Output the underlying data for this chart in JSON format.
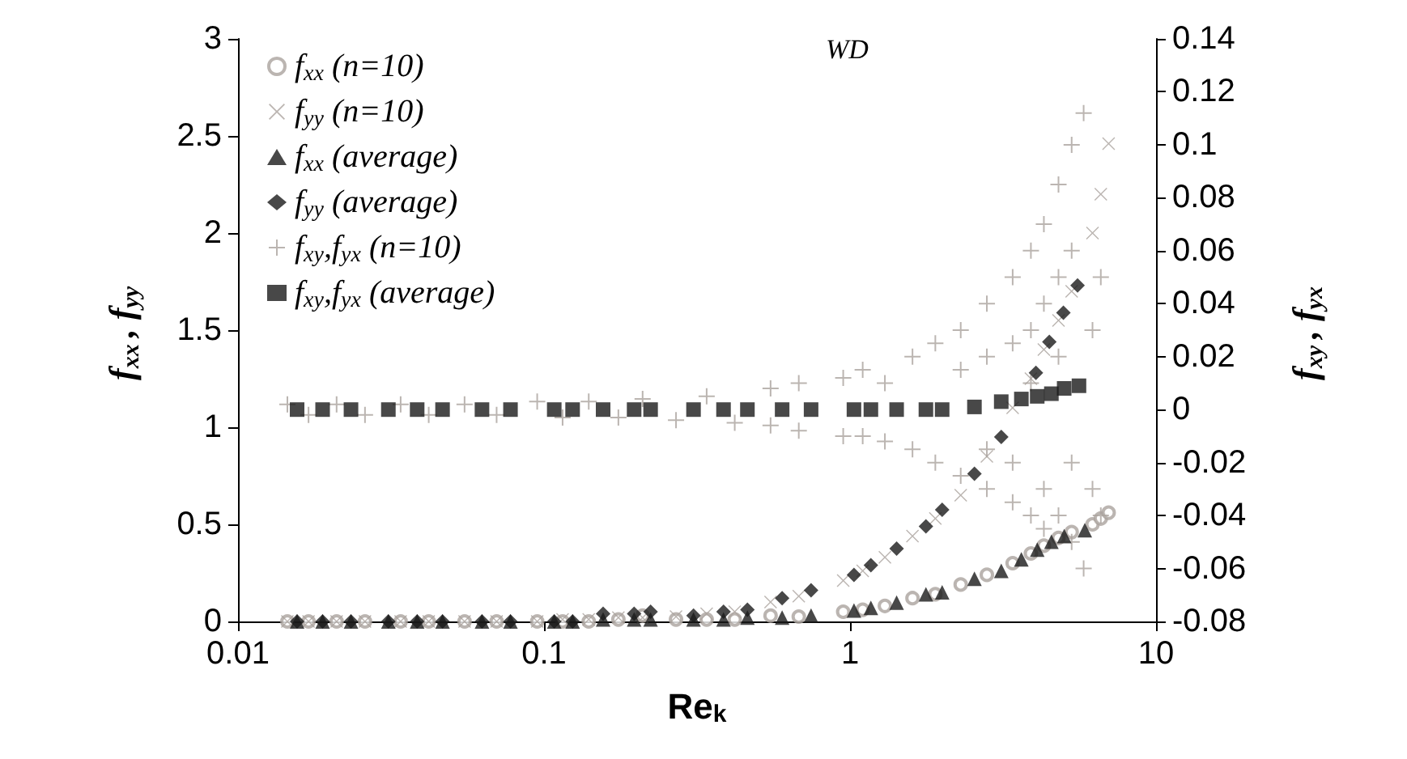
{
  "chart_data": {
    "type": "scatter",
    "xlabel": "Re$_{k}$",
    "ylabel": "f$_{xx}$, f$_{yy}$",
    "y2label": "f$_{xy}$, f$_{yx}$",
    "annotations": [
      "WD"
    ],
    "log": "x",
    "xlim": [
      0.01,
      10
    ],
    "xticks": [
      0.01,
      0.1,
      1,
      10
    ],
    "ylim": [
      0,
      3
    ],
    "yticks": [
      0,
      0.5,
      1,
      1.5,
      2,
      2.5,
      3
    ],
    "y2lim": [
      -0.08,
      0.14
    ],
    "y2ticks": [
      -0.08,
      -0.06,
      -0.04,
      -0.02,
      0,
      0.02,
      0.04,
      0.06,
      0.08,
      0.1,
      0.12,
      0.14
    ],
    "grid": false,
    "legend": "top left",
    "series": [
      {
        "name": "f$_{xx}$ (n=10)",
        "color": "#aaa39d",
        "marker": "circle",
        "x": [
          0.0145,
          0.017,
          0.021,
          0.026,
          0.034,
          0.042,
          0.055,
          0.07,
          0.095,
          0.115,
          0.14,
          0.175,
          0.21,
          0.27,
          0.34,
          0.42,
          0.55,
          0.68,
          0.95,
          1.1,
          1.3,
          1.6,
          1.9,
          2.3,
          2.8,
          3.4,
          3.9,
          4.3,
          4.8,
          5.3,
          6.2,
          6.6,
          7.0
        ],
        "values": [
          0,
          0,
          0,
          0,
          0,
          0,
          0,
          0,
          0,
          0,
          0,
          0.01,
          0.03,
          0.01,
          0.01,
          0.01,
          0.03,
          0.025,
          0.05,
          0.06,
          0.08,
          0.12,
          0.14,
          0.19,
          0.24,
          0.3,
          0.35,
          0.39,
          0.43,
          0.46,
          0.5,
          0.53,
          0.56
        ]
      },
      {
        "name": "f$_{yy}$ (n=10)",
        "color": "#aaa39d",
        "marker": "x",
        "x": [
          0.0145,
          0.017,
          0.021,
          0.026,
          0.034,
          0.042,
          0.055,
          0.07,
          0.095,
          0.115,
          0.14,
          0.175,
          0.21,
          0.27,
          0.34,
          0.42,
          0.55,
          0.68,
          0.95,
          1.1,
          1.3,
          1.6,
          1.9,
          2.3,
          2.8,
          3.4,
          3.9,
          4.3,
          4.8,
          5.3,
          6.2,
          6.6,
          7.0
        ],
        "values": [
          0,
          0,
          0,
          0,
          0,
          0,
          0,
          0,
          0,
          0.01,
          0.01,
          0.02,
          0.02,
          0.025,
          0.04,
          0.05,
          0.1,
          0.13,
          0.21,
          0.26,
          0.33,
          0.44,
          0.53,
          0.65,
          0.85,
          1.1,
          1.25,
          1.4,
          1.55,
          1.7,
          2.0,
          2.2,
          2.46
        ]
      },
      {
        "name": "f$_{xx}$ (average)",
        "color": "#1a1a1a",
        "marker": "triangle",
        "x": [
          0.0156,
          0.0189,
          0.0234,
          0.031,
          0.0385,
          0.0466,
          0.0627,
          0.0777,
          0.108,
          0.124,
          0.156,
          0.197,
          0.223,
          0.308,
          0.386,
          0.462,
          0.6,
          0.746,
          1.03,
          1.17,
          1.42,
          1.77,
          2.0,
          2.55,
          3.12,
          3.63,
          4.09,
          4.55,
          5.01,
          5.85
        ],
        "values": [
          0,
          0,
          0,
          0,
          0,
          0,
          0,
          0,
          0,
          0,
          0.01,
          0.01,
          0.01,
          0.01,
          0.01,
          0.02,
          0.02,
          0.03,
          0.056,
          0.07,
          0.097,
          0.14,
          0.15,
          0.22,
          0.26,
          0.32,
          0.37,
          0.41,
          0.44,
          0.47
        ]
      },
      {
        "name": "f$_{yy}$ (average)",
        "color": "#1a1a1a",
        "marker": "diamond",
        "x": [
          0.0156,
          0.0189,
          0.0234,
          0.031,
          0.0385,
          0.0466,
          0.0627,
          0.0777,
          0.108,
          0.124,
          0.156,
          0.197,
          0.223,
          0.308,
          0.386,
          0.462,
          0.6,
          0.746,
          1.03,
          1.17,
          1.42,
          1.77,
          2.0,
          2.55,
          3.12,
          4.05,
          4.48,
          4.98,
          5.54
        ],
        "values": [
          0,
          0,
          0,
          0,
          0,
          0,
          0,
          0,
          0,
          0,
          0.04,
          0.04,
          0.05,
          0.03,
          0.05,
          0.06,
          0.12,
          0.16,
          0.24,
          0.29,
          0.375,
          0.49,
          0.575,
          0.76,
          0.95,
          1.28,
          1.44,
          1.59,
          1.73
        ]
      },
      {
        "name": "f$_{xy}$,f$_{yx}$ (n=10)",
        "color": "#aaa39d",
        "marker": "cross",
        "axis": "y2",
        "x": [
          0.0145,
          0.017,
          0.021,
          0.026,
          0.034,
          0.042,
          0.055,
          0.07,
          0.095,
          0.115,
          0.14,
          0.175,
          0.21,
          0.27,
          0.34,
          0.42,
          0.55,
          0.55,
          0.68,
          0.68,
          0.95,
          0.95,
          1.1,
          1.1,
          1.3,
          1.3,
          1.6,
          1.6,
          1.9,
          1.9,
          2.3,
          2.3,
          2.3,
          2.8,
          2.8,
          2.8,
          2.8,
          3.4,
          3.4,
          3.4,
          3.4,
          3.9,
          3.9,
          3.9,
          3.9,
          4.3,
          4.3,
          4.3,
          4.3,
          4.8,
          4.8,
          4.8,
          4.8,
          5.3,
          5.3,
          5.3,
          5.3,
          5.8,
          5.8,
          6.2,
          6.2,
          6.6,
          6.6
        ],
        "values": [
          0.002,
          -0.002,
          0.002,
          -0.002,
          0.002,
          -0.002,
          0.002,
          -0.002,
          0.003,
          -0.003,
          0.003,
          -0.003,
          0.004,
          -0.004,
          0.005,
          -0.005,
          0.008,
          -0.006,
          0.01,
          -0.008,
          0.012,
          -0.01,
          0.015,
          -0.01,
          0.01,
          -0.012,
          0.02,
          -0.015,
          0.025,
          -0.02,
          0.03,
          -0.025,
          0.015,
          0.04,
          -0.03,
          0.02,
          -0.015,
          0.05,
          -0.035,
          0.025,
          -0.02,
          0.06,
          -0.04,
          0.03,
          0.01,
          0.07,
          -0.045,
          0.04,
          -0.03,
          0.085,
          -0.04,
          0.05,
          0.02,
          0.1,
          -0.05,
          0.06,
          -0.02,
          0.112,
          -0.06,
          0.03,
          -0.03,
          0.05,
          -0.04
        ]
      },
      {
        "name": "f$_{xy}$,f$_{yx}$ (average)",
        "color": "#1a1a1a",
        "marker": "square",
        "axis": "y2",
        "x": [
          0.0156,
          0.0189,
          0.0234,
          0.031,
          0.0385,
          0.0466,
          0.0627,
          0.0777,
          0.108,
          0.124,
          0.156,
          0.197,
          0.223,
          0.308,
          0.386,
          0.462,
          0.6,
          0.746,
          1.03,
          1.17,
          1.42,
          1.77,
          2.0,
          2.55,
          3.12,
          3.63,
          4.09,
          4.55,
          5.01,
          5.6
        ],
        "values": [
          0,
          0,
          0,
          0,
          0,
          0,
          0,
          0,
          0,
          0,
          0,
          0,
          0,
          0,
          0,
          0,
          0,
          0,
          0,
          0,
          0,
          0,
          0,
          0.001,
          0.003,
          0.004,
          0.005,
          0.006,
          0.008,
          0.009
        ]
      }
    ]
  }
}
